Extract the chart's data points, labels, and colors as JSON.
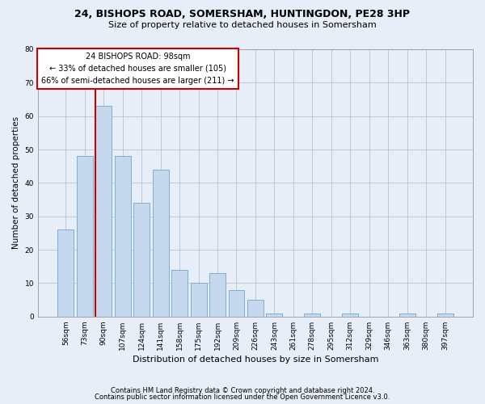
{
  "title1": "24, BISHOPS ROAD, SOMERSHAM, HUNTINGDON, PE28 3HP",
  "title2": "Size of property relative to detached houses in Somersham",
  "xlabel": "Distribution of detached houses by size in Somersham",
  "ylabel": "Number of detached properties",
  "categories": [
    "56sqm",
    "73sqm",
    "90sqm",
    "107sqm",
    "124sqm",
    "141sqm",
    "158sqm",
    "175sqm",
    "192sqm",
    "209sqm",
    "226sqm",
    "243sqm",
    "261sqm",
    "278sqm",
    "295sqm",
    "312sqm",
    "329sqm",
    "346sqm",
    "363sqm",
    "380sqm",
    "397sqm"
  ],
  "values": [
    26,
    48,
    63,
    48,
    34,
    44,
    14,
    10,
    13,
    8,
    5,
    1,
    0,
    1,
    0,
    1,
    0,
    0,
    1,
    0,
    1
  ],
  "bar_color": "#c5d8ee",
  "bar_edge_color": "#7aafd4",
  "vline_index": 2,
  "vline_color": "#cc0000",
  "annotation_line1": "24 BISHOPS ROAD: 98sqm",
  "annotation_line2": "← 33% of detached houses are smaller (105)",
  "annotation_line3": "66% of semi-detached houses are larger (211) →",
  "annotation_box_facecolor": "#ffffff",
  "annotation_box_edgecolor": "#cc0000",
  "ylim": [
    0,
    80
  ],
  "yticks": [
    0,
    10,
    20,
    30,
    40,
    50,
    60,
    70,
    80
  ],
  "footer1": "Contains HM Land Registry data © Crown copyright and database right 2024.",
  "footer2": "Contains public sector information licensed under the Open Government Licence v3.0.",
  "bg_color": "#e8eef8",
  "plot_bg_color": "#e8eef8"
}
